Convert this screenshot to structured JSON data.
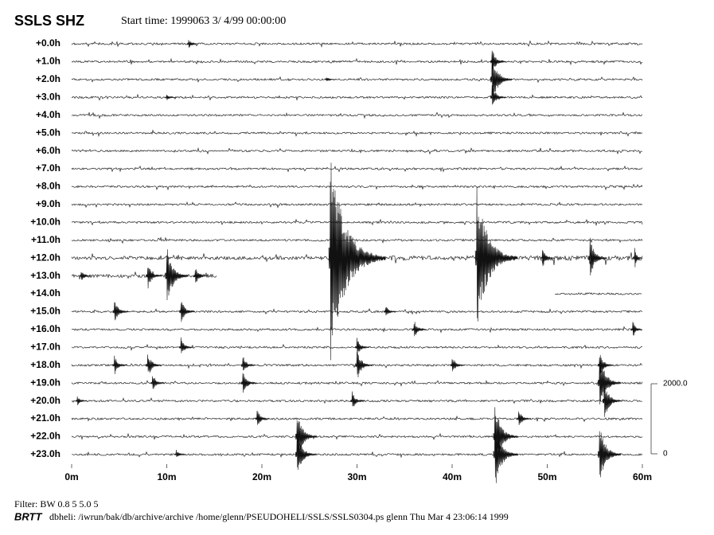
{
  "header": {
    "station": "SSLS SHZ",
    "start": "Start time: 1999063  3/ 4/99 00:00:00"
  },
  "rows": [
    {
      "label": "+0.0h"
    },
    {
      "label": "+1.0h"
    },
    {
      "label": "+2.0h"
    },
    {
      "label": "+3.0h"
    },
    {
      "label": "+4.0h"
    },
    {
      "label": "+5.0h"
    },
    {
      "label": "+6.0h"
    },
    {
      "label": "+7.0h"
    },
    {
      "label": "+8.0h"
    },
    {
      "label": "+9.0h"
    },
    {
      "label": "+10.0h"
    },
    {
      "label": "+11.0h"
    },
    {
      "label": "+12.0h"
    },
    {
      "label": "+13.0h",
      "end": 15.3
    },
    {
      "label": "+14.0h",
      "start": 50.8
    },
    {
      "label": "+15.0h"
    },
    {
      "label": "+16.0h"
    },
    {
      "label": "+17.0h"
    },
    {
      "label": "+18.0h"
    },
    {
      "label": "+19.0h"
    },
    {
      "label": "+20.0h"
    },
    {
      "label": "+21.0h"
    },
    {
      "label": "+22.0h"
    },
    {
      "label": "+23.0h"
    }
  ],
  "xlim": [
    0,
    60
  ],
  "xticks": [
    {
      "value": 0,
      "label": "0m"
    },
    {
      "value": 10,
      "label": "10m"
    },
    {
      "value": 20,
      "label": "20m"
    },
    {
      "value": 30,
      "label": "30m"
    },
    {
      "value": 40,
      "label": "40m"
    },
    {
      "value": 50,
      "label": "50m"
    },
    {
      "value": 60,
      "label": "60m"
    }
  ],
  "scale_ticks": [
    {
      "value": 2000,
      "label": "2000.0"
    },
    0
  ],
  "events": [
    {
      "row": 0,
      "minute": 12.3,
      "amp": 150
    },
    {
      "row": 1,
      "minute": 44.2,
      "amp": 400
    },
    {
      "row": 2,
      "minute": 44.2,
      "amp": 800
    },
    {
      "row": 2,
      "minute": 26.8,
      "amp": 80
    },
    {
      "row": 3,
      "minute": 44.2,
      "amp": 400
    },
    {
      "row": 3,
      "minute": 10,
      "amp": 100
    },
    {
      "row": 12,
      "minute": 27.2,
      "amp": 3000
    },
    {
      "row": 12,
      "minute": 42.6,
      "amp": 2100
    },
    {
      "row": 12,
      "minute": 49.5,
      "amp": 300
    },
    {
      "row": 12,
      "minute": 54.5,
      "amp": 600
    },
    {
      "row": 12,
      "minute": 59.2,
      "amp": 400
    },
    {
      "row": 13,
      "minute": 1,
      "amp": 200
    },
    {
      "row": 13,
      "minute": 8,
      "amp": 400
    },
    {
      "row": 13,
      "minute": 10,
      "amp": 900
    },
    {
      "row": 13,
      "minute": 13,
      "amp": 300
    },
    {
      "row": 15,
      "minute": 4.5,
      "amp": 400
    },
    {
      "row": 15,
      "minute": 11.5,
      "amp": 400
    },
    {
      "row": 15,
      "minute": 33,
      "amp": 200
    },
    {
      "row": 16,
      "minute": 36,
      "amp": 300
    },
    {
      "row": 16,
      "minute": 59,
      "amp": 300
    },
    {
      "row": 17,
      "minute": 11.5,
      "amp": 300
    },
    {
      "row": 17,
      "minute": 30,
      "amp": 300
    },
    {
      "row": 18,
      "minute": 4.5,
      "amp": 300
    },
    {
      "row": 18,
      "minute": 8,
      "amp": 400
    },
    {
      "row": 18,
      "minute": 18,
      "amp": 300
    },
    {
      "row": 18,
      "minute": 30,
      "amp": 500
    },
    {
      "row": 18,
      "minute": 40,
      "amp": 300
    },
    {
      "row": 18,
      "minute": 55.5,
      "amp": 400
    },
    {
      "row": 19,
      "minute": 8.5,
      "amp": 300
    },
    {
      "row": 19,
      "minute": 18,
      "amp": 400
    },
    {
      "row": 19,
      "minute": 55.5,
      "amp": 900
    },
    {
      "row": 20,
      "minute": 0.6,
      "amp": 150
    },
    {
      "row": 20,
      "minute": 29.5,
      "amp": 300
    },
    {
      "row": 20,
      "minute": 56,
      "amp": 600
    },
    {
      "row": 21,
      "minute": 19.5,
      "amp": 300
    },
    {
      "row": 21,
      "minute": 47,
      "amp": 300
    },
    {
      "row": 22,
      "minute": 23.7,
      "amp": 800
    },
    {
      "row": 22,
      "minute": 44.5,
      "amp": 1000
    },
    {
      "row": 23,
      "minute": 11,
      "amp": 150
    },
    {
      "row": 23,
      "minute": 23.7,
      "amp": 700
    },
    {
      "row": 23,
      "minute": 44.5,
      "amp": 1000
    },
    {
      "row": 23,
      "minute": 55.5,
      "amp": 900
    }
  ],
  "footer": {
    "filter": "Filter: BW 0.8 5 5.0 5",
    "brand": "BRTT",
    "info": "dbheli: /iwrun/bak/db/archive/archive /home/glenn/PSEUDOHELI/SSLS/SSLS0304.ps glenn Thu Mar  4 23:06:14 1999"
  }
}
